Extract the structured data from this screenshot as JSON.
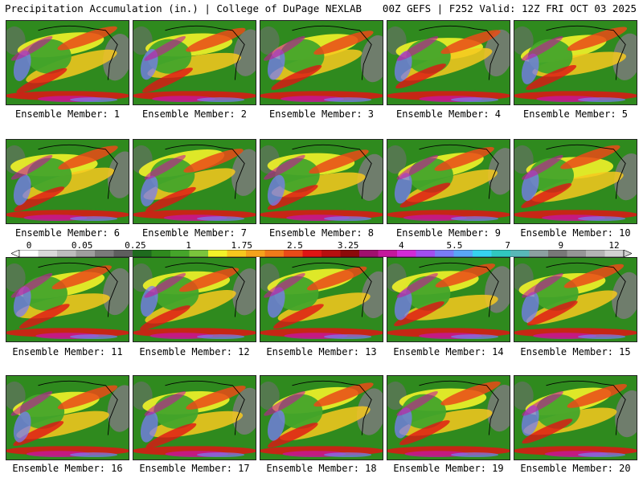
{
  "header": {
    "title_left": "Precipitation Accumulation (in.) | College of DuPage NEXLAB",
    "title_right": "00Z GEFS | F252 Valid: 12Z FRI OCT 03 2025"
  },
  "panels": [
    {
      "label": "Ensemble Member: 1"
    },
    {
      "label": "Ensemble Member: 2"
    },
    {
      "label": "Ensemble Member: 3"
    },
    {
      "label": "Ensemble Member: 4"
    },
    {
      "label": "Ensemble Member: 5"
    },
    {
      "label": "Ensemble Member: 6"
    },
    {
      "label": "Ensemble Member: 7"
    },
    {
      "label": "Ensemble Member: 8"
    },
    {
      "label": "Ensemble Member: 9"
    },
    {
      "label": "Ensemble Member: 10"
    },
    {
      "label": "Ensemble Member: 11"
    },
    {
      "label": "Ensemble Member: 12"
    },
    {
      "label": "Ensemble Member: 13"
    },
    {
      "label": "Ensemble Member: 14"
    },
    {
      "label": "Ensemble Member: 15"
    },
    {
      "label": "Ensemble Member: 16"
    },
    {
      "label": "Ensemble Member: 17"
    },
    {
      "label": "Ensemble Member: 18"
    },
    {
      "label": "Ensemble Member: 19"
    },
    {
      "label": "Ensemble Member: 20"
    }
  ],
  "colorbar": {
    "tick_labels": [
      "0",
      "0.05",
      "0.25",
      "1",
      "1.75",
      "2.5",
      "3.25",
      "4",
      "5.5",
      "7",
      "9",
      "12"
    ],
    "colors": [
      "#ffffff",
      "#d9d9d9",
      "#bdbdbd",
      "#9e9e9e",
      "#7a7a7a",
      "#5e5e5e",
      "#1e6b1e",
      "#2f8a1e",
      "#45a52a",
      "#7bc43c",
      "#f2f229",
      "#f7c81e",
      "#f5a21c",
      "#f07a1a",
      "#ea4a18",
      "#e01414",
      "#b80f0f",
      "#8c0a0a",
      "#a0106e",
      "#c4179c",
      "#d22ad8",
      "#a24ef0",
      "#7a7cf5",
      "#5aa6f5",
      "#36d3f0",
      "#30c8c0",
      "#58b8b8",
      "#8ca0a0",
      "#787878",
      "#969696",
      "#b4b4b4",
      "#d2d2d2"
    ]
  }
}
